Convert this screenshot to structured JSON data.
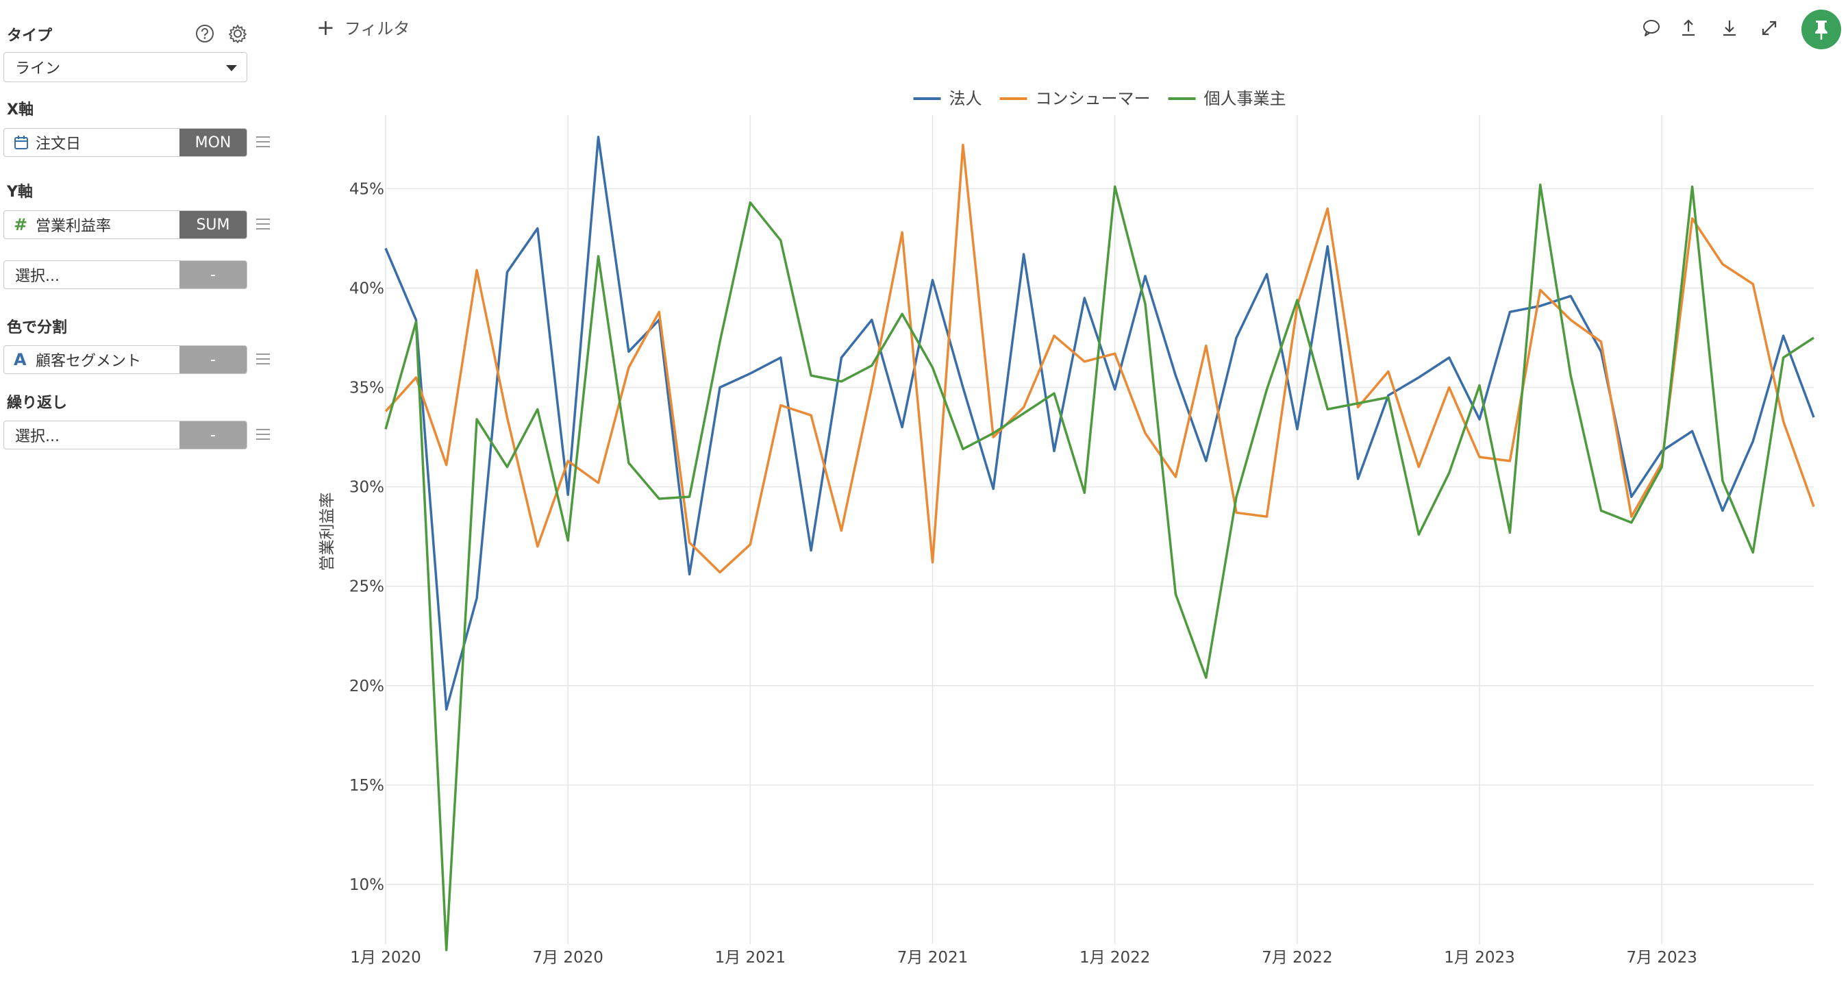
{
  "sidebar": {
    "type_label": "タイプ",
    "type_value": "ライン",
    "x_label": "X軸",
    "x_field": "注文日",
    "x_agg": "MON",
    "y_label": "Y軸",
    "y_field": "営業利益率",
    "y_agg": "SUM",
    "y2_field": "選択...",
    "y2_agg": "-",
    "color_label": "色で分割",
    "color_field": "顧客セグメント",
    "color_agg": "-",
    "repeat_label": "繰り返し",
    "repeat_field": "選択...",
    "repeat_agg": "-"
  },
  "toolbar": {
    "filter_label": "フィルタ",
    "icons": [
      "comment-icon",
      "upload-icon",
      "download-icon",
      "expand-icon",
      "pin-icon"
    ],
    "pin_color": "#3aa05a"
  },
  "chart_data": {
    "type": "line",
    "ylabel": "営業利益率",
    "ylim": [
      0.07,
      0.487
    ],
    "y_ticks": [
      0.1,
      0.15,
      0.2,
      0.25,
      0.3,
      0.35,
      0.4,
      0.45
    ],
    "y_tick_labels": [
      "10%",
      "15%",
      "20%",
      "25%",
      "30%",
      "35%",
      "40%",
      "45%"
    ],
    "x_tick_labels": [
      "1月 2020",
      "7月 2020",
      "1月 2021",
      "7月 2021",
      "1月 2022",
      "7月 2022",
      "1月 2023",
      "7月 2023"
    ],
    "x_tick_index": [
      0,
      6,
      12,
      18,
      24,
      30,
      36,
      42
    ],
    "x": [
      "2020-01",
      "2020-02",
      "2020-03",
      "2020-04",
      "2020-05",
      "2020-06",
      "2020-07",
      "2020-08",
      "2020-09",
      "2020-10",
      "2020-11",
      "2020-12",
      "2021-01",
      "2021-02",
      "2021-03",
      "2021-04",
      "2021-05",
      "2021-06",
      "2021-07",
      "2021-08",
      "2021-09",
      "2021-10",
      "2021-11",
      "2021-12",
      "2022-01",
      "2022-02",
      "2022-03",
      "2022-04",
      "2022-05",
      "2022-06",
      "2022-07",
      "2022-08",
      "2022-09",
      "2022-10",
      "2022-11",
      "2022-12",
      "2023-01",
      "2023-02",
      "2023-03",
      "2023-04",
      "2023-05",
      "2023-06",
      "2023-07",
      "2023-08",
      "2023-09",
      "2023-10",
      "2023-11",
      "2023-12"
    ],
    "grid": true,
    "legend_position": "top",
    "series": [
      {
        "name": "法人",
        "color": "#3a6ea8",
        "values": [
          0.42,
          0.384,
          0.188,
          0.244,
          0.408,
          0.43,
          0.296,
          0.476,
          0.368,
          0.384,
          0.256,
          0.35,
          0.357,
          0.365,
          0.268,
          0.365,
          0.384,
          0.33,
          0.404,
          0.35,
          0.299,
          0.417,
          0.318,
          0.395,
          0.349,
          0.406,
          0.356,
          0.313,
          0.375,
          0.407,
          0.329,
          0.421,
          0.304,
          0.346,
          0.355,
          0.365,
          0.334,
          0.388,
          0.391,
          0.396,
          0.368,
          0.295,
          0.318,
          0.328,
          0.288,
          0.323,
          0.376,
          0.335
        ]
      },
      {
        "name": "コンシューマー",
        "color": "#ea8a35",
        "values": [
          0.338,
          0.355,
          0.311,
          0.409,
          0.335,
          0.27,
          0.313,
          0.302,
          0.36,
          0.388,
          0.272,
          0.257,
          0.271,
          0.341,
          0.336,
          0.278,
          0.35,
          0.428,
          0.262,
          0.472,
          0.325,
          0.34,
          0.376,
          0.363,
          0.367,
          0.327,
          0.305,
          0.371,
          0.287,
          0.285,
          0.391,
          0.44,
          0.34,
          0.358,
          0.31,
          0.35,
          0.315,
          0.313,
          0.399,
          0.384,
          0.373,
          0.285,
          0.312,
          0.435,
          0.412,
          0.402,
          0.333,
          0.29
        ]
      },
      {
        "name": "個人事業主",
        "color": "#4e9a3e",
        "values": [
          0.329,
          0.383,
          0.067,
          0.334,
          0.31,
          0.339,
          0.273,
          0.416,
          0.312,
          0.294,
          0.295,
          0.373,
          0.443,
          0.424,
          0.356,
          0.353,
          0.361,
          0.387,
          0.36,
          0.319,
          0.327,
          0.337,
          0.347,
          0.297,
          0.451,
          0.392,
          0.246,
          0.204,
          0.295,
          0.349,
          0.394,
          0.339,
          0.342,
          0.345,
          0.276,
          0.307,
          0.351,
          0.277,
          0.452,
          0.356,
          0.288,
          0.282,
          0.31,
          0.451,
          0.303,
          0.267,
          0.365,
          0.375
        ]
      }
    ]
  }
}
